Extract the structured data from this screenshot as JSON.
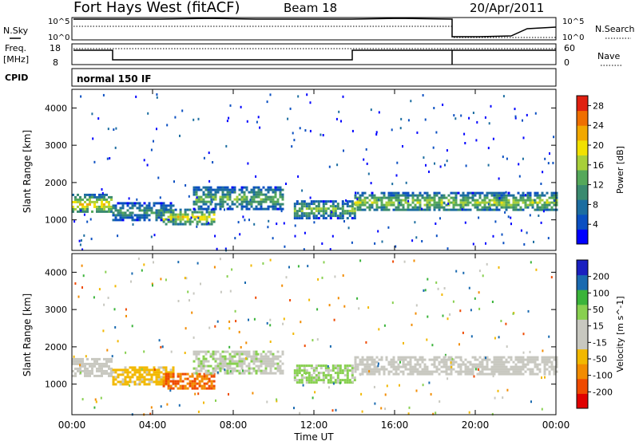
{
  "header": {
    "title": "Fort Hays West (fitACF)",
    "beam": "Beam 18",
    "date": "20/Apr/2011"
  },
  "params": {
    "nsky_label": "N.Sky",
    "nsearch_label": "N.Search",
    "freq_label": "Freq.",
    "freq_unit": "[MHz]",
    "nave_label": "Nave",
    "cpid_label": "CPID",
    "cpid_value": "normal 150 IF",
    "noise_ticks_left": [
      "10^5",
      "10^0"
    ],
    "noise_ticks_right": [
      "10^5",
      "10^0"
    ],
    "freq_ticks": [
      "18",
      "8"
    ],
    "nave_ticks": [
      "60",
      "0"
    ],
    "freq_mhz_segments": [
      {
        "from_h": 0.0,
        "to_h": 2.0,
        "value": 15
      },
      {
        "from_h": 2.0,
        "to_h": 14.0,
        "value": 11
      },
      {
        "from_h": 14.0,
        "to_h": 19.0,
        "value": 15
      },
      {
        "from_h": 19.0,
        "to_h": 24.0,
        "value": 15
      }
    ]
  },
  "chart_data": [
    {
      "type": "heatmap",
      "name": "power",
      "ylabel": "Slant Range [km]",
      "xlabel": "Time UT",
      "xlim": [
        0,
        24
      ],
      "ylim": [
        180,
        4500
      ],
      "x_ticks": [
        "00:00",
        "04:00",
        "08:00",
        "12:00",
        "16:00",
        "20:00",
        "00:00"
      ],
      "y_ticks": [
        "1000",
        "2000",
        "3000",
        "4000"
      ],
      "colorbar": {
        "label": "Power [dB]",
        "ticks": [
          "4",
          "8",
          "12",
          "16",
          "20",
          "24",
          "28"
        ],
        "range": [
          0,
          30
        ],
        "colors": [
          "#0000ff",
          "#0a4fc2",
          "#1c6da0",
          "#3a8a6f",
          "#55a85a",
          "#a8cf3a",
          "#f2e100",
          "#f2a800",
          "#ef6f00",
          "#e02010"
        ]
      },
      "bands": [
        {
          "from_h": 0.0,
          "to_h": 2.0,
          "center_km": 1450,
          "width_km": 500,
          "power_db": 18
        },
        {
          "from_h": 2.0,
          "to_h": 5.0,
          "center_km": 1250,
          "width_km": 450,
          "power_db": 10
        },
        {
          "from_h": 4.5,
          "to_h": 7.0,
          "center_km": 1100,
          "width_km": 400,
          "power_db": 17
        },
        {
          "from_h": 6.0,
          "to_h": 10.5,
          "center_km": 1600,
          "width_km": 600,
          "power_db": 12
        },
        {
          "from_h": 11.0,
          "to_h": 14.0,
          "center_km": 1300,
          "width_km": 450,
          "power_db": 13
        },
        {
          "from_h": 14.0,
          "to_h": 24.0,
          "center_km": 1500,
          "width_km": 500,
          "power_db": 14
        }
      ]
    },
    {
      "type": "heatmap",
      "name": "velocity",
      "ylabel": "Slant Range [km]",
      "xlabel": "Time UT",
      "xlim": [
        0,
        24
      ],
      "ylim": [
        180,
        4500
      ],
      "x_ticks": [
        "00:00",
        "04:00",
        "08:00",
        "12:00",
        "16:00",
        "20:00",
        "00:00"
      ],
      "y_ticks": [
        "1000",
        "2000",
        "3000",
        "4000"
      ],
      "colorbar": {
        "label": "Velocity [m s^-1]",
        "ticks": [
          "200",
          "100",
          "50",
          "15",
          "-15",
          "-50",
          "-100",
          "-200"
        ],
        "range": [
          -250,
          250
        ],
        "colors": [
          "#e00000",
          "#ef4a00",
          "#f28c00",
          "#f2b800",
          "#c8c8c0",
          "#c8c8c0",
          "#88d050",
          "#3ab43a",
          "#1a6ab0",
          "#1a20c0"
        ]
      },
      "bands": [
        {
          "from_h": 0.0,
          "to_h": 2.0,
          "center_km": 1450,
          "width_km": 500,
          "velocity_ms": 0
        },
        {
          "from_h": 2.0,
          "to_h": 5.0,
          "center_km": 1250,
          "width_km": 450,
          "velocity_ms": -60
        },
        {
          "from_h": 4.5,
          "to_h": 7.0,
          "center_km": 1100,
          "width_km": 400,
          "velocity_ms": -150
        },
        {
          "from_h": 6.0,
          "to_h": 10.5,
          "center_km": 1600,
          "width_km": 600,
          "velocity_ms": 40
        },
        {
          "from_h": 11.0,
          "to_h": 14.0,
          "center_km": 1300,
          "width_km": 450,
          "velocity_ms": 60
        },
        {
          "from_h": 14.0,
          "to_h": 24.0,
          "center_km": 1500,
          "width_km": 500,
          "velocity_ms": 0
        }
      ]
    }
  ]
}
